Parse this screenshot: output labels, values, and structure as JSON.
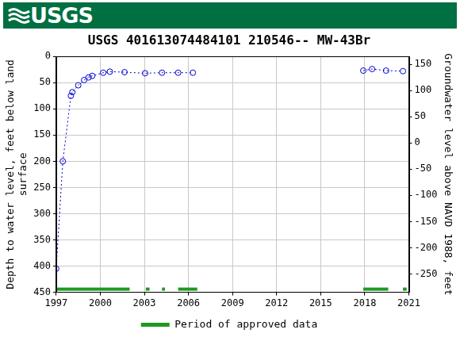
{
  "header": {
    "logo": "USGS"
  },
  "chart_data": {
    "type": "scatter",
    "title": "USGS 401613074484101 210546-- MW-43Br",
    "ylabel": [
      "Depth to water level, feet below land",
      "surface"
    ],
    "y2label": "Groundwater level above NAVD 1988, feet",
    "x": [
      1997.0,
      1997.45,
      1998.0,
      1998.1,
      1998.5,
      1998.9,
      1999.2,
      1999.45,
      2000.2,
      2000.65,
      2001.65,
      2003.05,
      2004.2,
      2005.3,
      2006.3,
      null,
      2017.9,
      2018.5,
      2019.45,
      2020.6
    ],
    "xlim": [
      1997,
      2021
    ],
    "xticks": [
      1997,
      2000,
      2003,
      2006,
      2009,
      2012,
      2015,
      2018,
      2021
    ],
    "ylim": [
      450,
      0
    ],
    "yticks": [
      0,
      50,
      100,
      150,
      200,
      250,
      300,
      350,
      400,
      450
    ],
    "y2lim": [
      -285,
      165
    ],
    "y2ticks": [
      -250,
      -200,
      -150,
      -100,
      -50,
      0,
      50,
      100,
      150
    ],
    "grid": true,
    "legend": "bottom",
    "series": [
      {
        "color": "#0000cc",
        "marker": "circle",
        "line_style": "dotted",
        "values": [
          405,
          200,
          75,
          68,
          55,
          45,
          40,
          37,
          31,
          29,
          30,
          32,
          31,
          31,
          31,
          null,
          27,
          24,
          27,
          28
        ]
      }
    ],
    "approved_periods": {
      "name": "Period of approved data",
      "color": "#1e9a1e",
      "ranges": [
        [
          1997.0,
          2002.0
        ],
        [
          2003.1,
          2003.35
        ],
        [
          2004.2,
          2004.4
        ],
        [
          2005.3,
          2006.6
        ],
        [
          2017.9,
          2019.6
        ],
        [
          2020.6,
          2020.85
        ]
      ]
    }
  }
}
